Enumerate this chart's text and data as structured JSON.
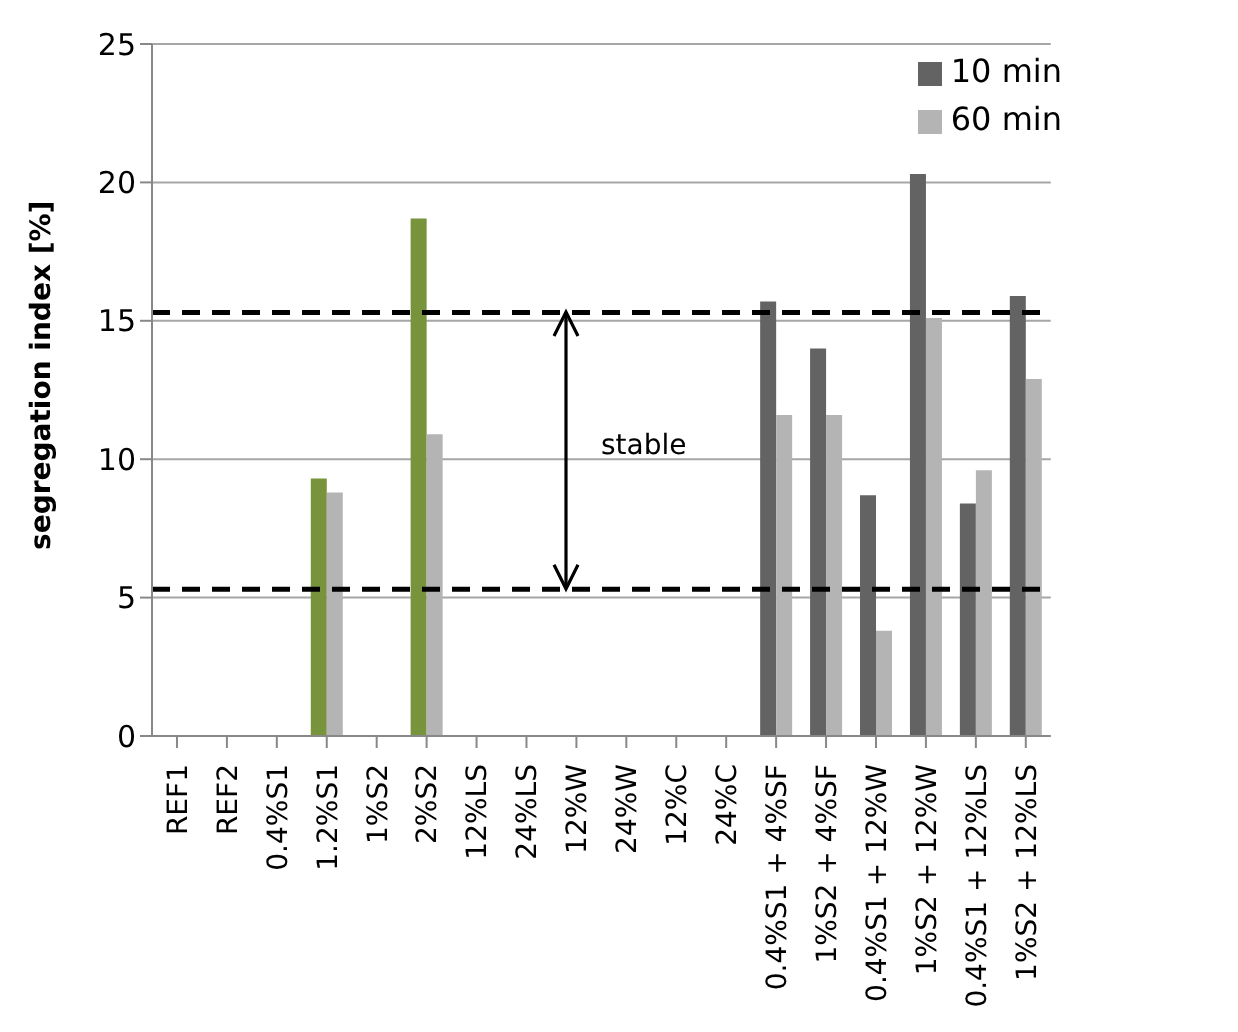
{
  "chart_data": {
    "type": "bar",
    "ylabel": "segregation index [%]",
    "categories": [
      "REF1",
      "REF2",
      "0.4%S1",
      "1.2%S1",
      "1%S2",
      "2%S2",
      "12%LS",
      "24%LS",
      "12%W",
      "24%W",
      "12%C",
      "24%C",
      "0.4%S1 + 4%SF",
      "1%S2 + 4%SF",
      "0.4%S1 + 12%W",
      "1%S2 + 12%W",
      "0.4%S1 + 12%LS",
      "1%S2 + 12%LS"
    ],
    "series": [
      {
        "name": "10 min",
        "color": "#636363",
        "colors": [
          "#636363",
          "#636363",
          "#636363",
          "#77933c",
          "#636363",
          "#77933c",
          "#636363",
          "#636363",
          "#636363",
          "#636363",
          "#636363",
          "#636363",
          "#636363",
          "#636363",
          "#636363",
          "#636363",
          "#636363",
          "#636363"
        ],
        "values": [
          null,
          null,
          null,
          9.3,
          null,
          18.7,
          null,
          null,
          null,
          null,
          null,
          null,
          15.7,
          14.0,
          8.7,
          20.3,
          8.4,
          15.9
        ]
      },
      {
        "name": "60 min",
        "color": "#b4b4b4",
        "values": [
          null,
          null,
          null,
          8.8,
          null,
          10.9,
          null,
          null,
          null,
          null,
          null,
          null,
          11.6,
          11.6,
          3.8,
          15.1,
          9.6,
          12.9
        ]
      }
    ],
    "ylim": [
      0,
      25
    ],
    "yticks": [
      0,
      5,
      10,
      15,
      20,
      25
    ],
    "grid": "y",
    "legend": "top right",
    "ref_lines": [
      {
        "axis": "y",
        "value": 15.3,
        "color": "#000000",
        "line_style": "dashed"
      },
      {
        "axis": "y",
        "value": 5.3,
        "color": "#000000",
        "line_style": "dashed"
      }
    ],
    "annotations": [
      "stable"
    ]
  }
}
